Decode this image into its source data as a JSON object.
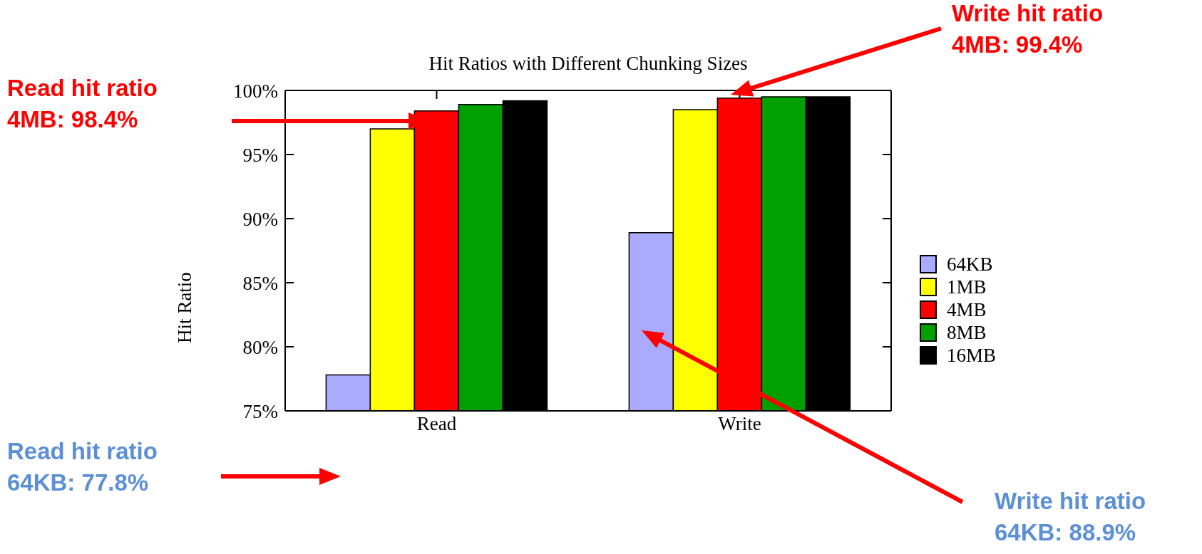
{
  "chart_data": {
    "type": "bar",
    "title": "Hit Ratios with Different Chunking Sizes",
    "ylabel": "Hit Ratio",
    "categories": [
      "Read",
      "Write"
    ],
    "series": [
      {
        "name": "64KB",
        "color": "#aaaaff",
        "values": [
          77.8,
          88.9
        ]
      },
      {
        "name": "1MB",
        "color": "#ffff00",
        "values": [
          97.0,
          98.5
        ]
      },
      {
        "name": "4MB",
        "color": "#ff0000",
        "values": [
          98.4,
          99.4
        ]
      },
      {
        "name": "8MB",
        "color": "#00a000",
        "values": [
          98.9,
          99.5
        ]
      },
      {
        "name": "16MB",
        "color": "#000000",
        "values": [
          99.2,
          99.5
        ]
      }
    ],
    "ylim": [
      75,
      100
    ],
    "yticks": [
      {
        "value": 75,
        "label": "75%"
      },
      {
        "value": 80,
        "label": "80%"
      },
      {
        "value": 85,
        "label": "85%"
      },
      {
        "value": 90,
        "label": "90%"
      },
      {
        "value": 95,
        "label": "95%"
      },
      {
        "value": 100,
        "label": "100%"
      }
    ],
    "grid": false,
    "legend": "right",
    "annotations": [
      "Read hit ratio\n4MB: 98.4%",
      "Write hit ratio\n4MB: 99.4%",
      "Read hit ratio\n64KB: 77.8%",
      "Write hit ratio\n64KB: 88.9%"
    ]
  }
}
